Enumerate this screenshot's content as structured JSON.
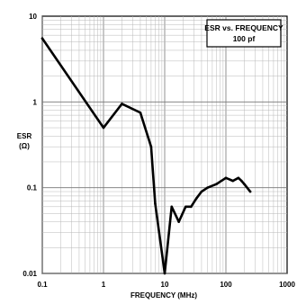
{
  "chart_data": {
    "type": "line",
    "title": "ESR vs. FREQUENCY",
    "subtitle": "100 pf",
    "xlabel": "FREQUENCY (MHz)",
    "ylabel": "ESR",
    "ylabel_unit": "(Ω)",
    "x_scale": "log",
    "y_scale": "log",
    "xlim": [
      0.1,
      1000
    ],
    "ylim": [
      0.01,
      10
    ],
    "grid": true,
    "legend_position": "top-right",
    "x_tick_labels": [
      "0.1",
      "1",
      "10",
      "100",
      "1000"
    ],
    "y_tick_labels": [
      "10",
      "1",
      "0.1",
      "0.01"
    ],
    "series": [
      {
        "x": [
          0.1,
          1.0,
          2.0,
          4.0,
          6.0,
          7.0,
          10.0,
          13.0,
          17.0,
          22.0,
          27.0,
          33.0,
          40.0,
          50.0,
          70.0,
          100.0,
          130.0,
          160.0,
          180.0,
          200.0,
          250.0
        ],
        "y": [
          5.5,
          0.5,
          0.95,
          0.75,
          0.3,
          0.065,
          0.01,
          0.06,
          0.04,
          0.06,
          0.06,
          0.075,
          0.09,
          0.1,
          0.11,
          0.13,
          0.12,
          0.13,
          0.12,
          0.11,
          0.09
        ]
      }
    ]
  }
}
